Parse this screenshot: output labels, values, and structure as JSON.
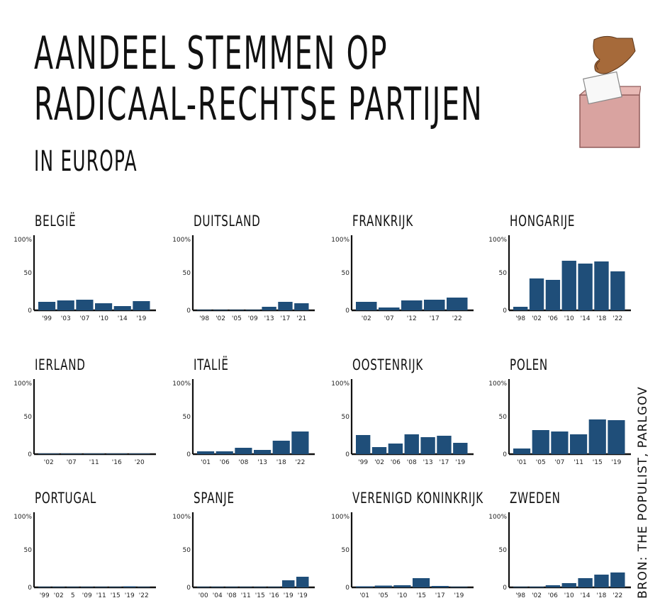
{
  "title_line1": "AANDEEL STEMMEN OP",
  "title_line2": "RADICAAL-RECHTSE PARTIJEN",
  "subtitle": "IN EUROPA",
  "source": "BRON: THE POPULIST, PARLGOV",
  "bar_color": "#1f4e79",
  "chart_data": [
    {
      "type": "bar",
      "title": "BELGIË",
      "ylim": [
        0,
        100
      ],
      "yticks": [
        "100%",
        "50",
        "0"
      ],
      "categories": [
        "'99",
        "'03",
        "'07",
        "'10",
        "'14",
        "'19"
      ],
      "values": [
        12,
        14,
        15,
        10,
        6,
        13
      ]
    },
    {
      "type": "bar",
      "title": "DUITSLAND",
      "ylim": [
        0,
        100
      ],
      "yticks": [
        "100%",
        "50",
        "0"
      ],
      "categories": [
        "'98",
        "'02",
        "'05",
        "'09",
        "'13",
        "'17",
        "'21"
      ],
      "values": [
        0.5,
        0.5,
        0.5,
        0.5,
        5,
        12,
        10
      ]
    },
    {
      "type": "bar",
      "title": "FRANKRIJK",
      "ylim": [
        0,
        100
      ],
      "yticks": [
        "100%",
        "50",
        "0"
      ],
      "categories": [
        "'02",
        "'07",
        "'12",
        "'17",
        "'22"
      ],
      "values": [
        12,
        4,
        14,
        15,
        18
      ]
    },
    {
      "type": "bar",
      "title": "HONGARIJE",
      "ylim": [
        0,
        100
      ],
      "yticks": [
        "100%",
        "50",
        "0"
      ],
      "categories": [
        "'98",
        "'02",
        "'06",
        "'10",
        "'14",
        "'18",
        "'22"
      ],
      "values": [
        5,
        45,
        43,
        70,
        66,
        69,
        55
      ]
    },
    {
      "type": "bar",
      "title": "IERLAND",
      "ylim": [
        0,
        100
      ],
      "yticks": [
        "100%",
        "50",
        "0"
      ],
      "categories": [
        "'02",
        "'07",
        "'11",
        "'16",
        "'20"
      ],
      "values": [
        0.3,
        0.3,
        0.3,
        0.8,
        0.3
      ]
    },
    {
      "type": "bar",
      "title": "ITALIË",
      "ylim": [
        0,
        100
      ],
      "yticks": [
        "100%",
        "50",
        "0"
      ],
      "categories": [
        "'01",
        "'06",
        "'08",
        "'13",
        "'18",
        "'22"
      ],
      "values": [
        4,
        4,
        9,
        6,
        19,
        32
      ]
    },
    {
      "type": "bar",
      "title": "OOSTENRIJK",
      "ylim": [
        0,
        100
      ],
      "yticks": [
        "100%",
        "50",
        "0"
      ],
      "categories": [
        "'99",
        "'02",
        "'06",
        "'08",
        "'13",
        "'17",
        "'19"
      ],
      "values": [
        27,
        10,
        15,
        28,
        24,
        26,
        16
      ]
    },
    {
      "type": "bar",
      "title": "POLEN",
      "ylim": [
        0,
        100
      ],
      "yticks": [
        "100%",
        "50",
        "0"
      ],
      "categories": [
        "'01",
        "'05",
        "'07",
        "'11",
        "'15",
        "'19"
      ],
      "values": [
        8,
        34,
        32,
        28,
        49,
        48
      ]
    },
    {
      "type": "bar",
      "title": "PORTUGAL",
      "ylim": [
        0,
        100
      ],
      "yticks": [
        "100%",
        "50",
        "0"
      ],
      "categories": [
        "'99",
        "'02",
        "5",
        "'09",
        "'11",
        "'15",
        "'19",
        "'22"
      ],
      "values": [
        0.3,
        0.3,
        0.3,
        0.3,
        0.3,
        0.5,
        1.5,
        0.5
      ]
    },
    {
      "type": "bar",
      "title": "SPANJE",
      "ylim": [
        0,
        100
      ],
      "yticks": [
        "100%",
        "50",
        "0"
      ],
      "categories": [
        "'00",
        "'04",
        "'08",
        "'11",
        "'15",
        "'16",
        "'19",
        "'19"
      ],
      "values": [
        0.2,
        0.2,
        0.2,
        0.2,
        0.2,
        0.2,
        10,
        15
      ]
    },
    {
      "type": "bar",
      "title": "VERENIGD KONINKRIJK",
      "ylim": [
        0,
        100
      ],
      "yticks": [
        "100%",
        "50",
        "0"
      ],
      "categories": [
        "'01",
        "'05",
        "'10",
        "'15",
        "'17",
        "'19"
      ],
      "values": [
        1.5,
        2.5,
        3,
        13,
        2,
        0.3
      ]
    },
    {
      "type": "bar",
      "title": "ZWEDEN",
      "ylim": [
        0,
        100
      ],
      "yticks": [
        "100%",
        "50",
        "0"
      ],
      "categories": [
        "'98",
        "'02",
        "'06",
        "'10",
        "'14",
        "'18",
        "'22"
      ],
      "values": [
        0.3,
        1,
        3,
        6,
        13,
        18,
        21
      ]
    }
  ]
}
